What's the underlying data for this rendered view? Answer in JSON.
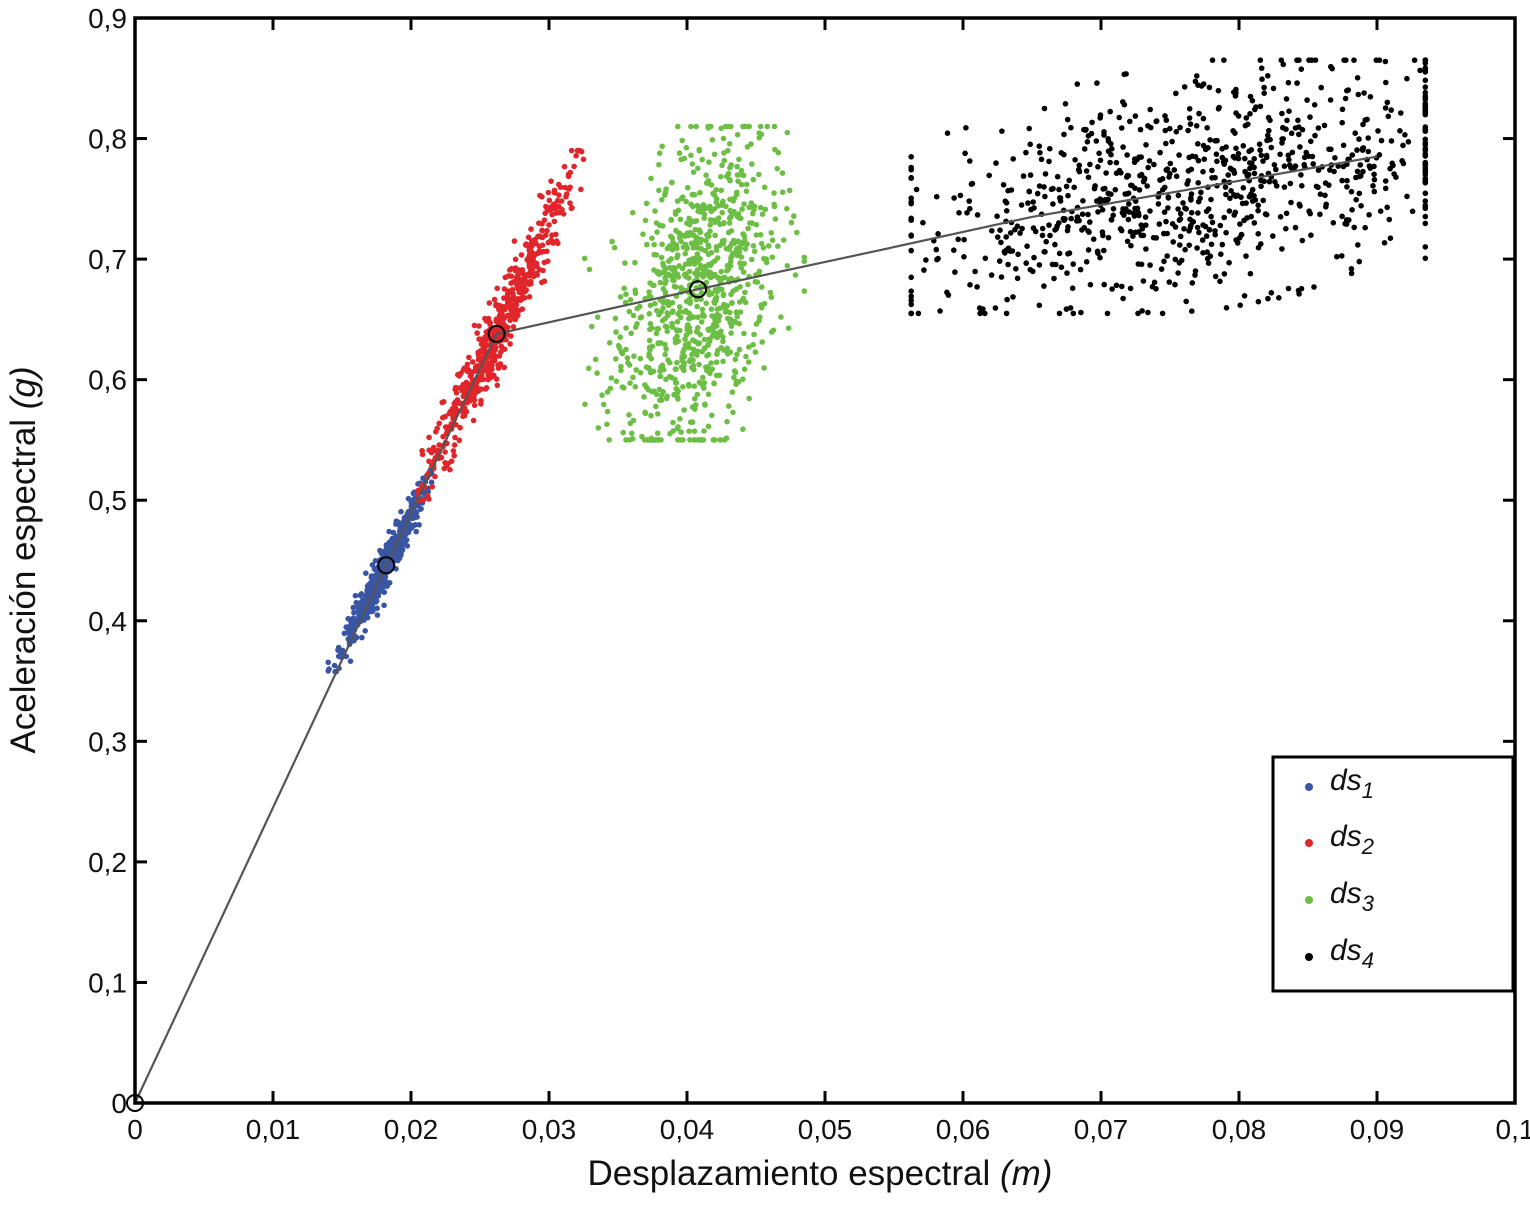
{
  "chart_data": {
    "type": "scatter",
    "title": "",
    "xlabel": "Desplazamiento espectral",
    "xlabel_unit": "(m)",
    "ylabel": "Aceleración espectral",
    "ylabel_unit": "(g)",
    "xlim": [
      0,
      0.1
    ],
    "ylim": [
      0,
      0.9
    ],
    "x_ticks": [
      0,
      0.01,
      0.02,
      0.03,
      0.04,
      0.05,
      0.06,
      0.07,
      0.08,
      0.09,
      0.1
    ],
    "x_tick_labels": [
      "0",
      "0,01",
      "0,02",
      "0,03",
      "0,04",
      "0,05",
      "0,06",
      "0,07",
      "0,08",
      "0,09",
      "0,1"
    ],
    "y_ticks": [
      0,
      0.1,
      0.2,
      0.3,
      0.4,
      0.5,
      0.6,
      0.7,
      0.8,
      0.9
    ],
    "y_tick_labels": [
      "0",
      "0,1",
      "0,2",
      "0,3",
      "0,4",
      "0,5",
      "0,6",
      "0,7",
      "0,8",
      "0,9"
    ],
    "grid": false,
    "legend_position": "bottom-right",
    "colors": {
      "ds1": "#3a55a4",
      "ds2": "#e0262b",
      "ds3": "#6dbe45",
      "ds4": "#000000",
      "capacity_curve": "#555555"
    },
    "capacity_curve": {
      "x": [
        0,
        0.0182,
        0.0262,
        0.0408,
        0.053,
        0.065,
        0.08,
        0.09
      ],
      "y": [
        0,
        0.446,
        0.638,
        0.675,
        0.705,
        0.735,
        0.765,
        0.785
      ]
    },
    "threshold_points": {
      "x": [
        0,
        0.0182,
        0.0262,
        0.0408
      ],
      "y": [
        0,
        0.446,
        0.638,
        0.675
      ]
    },
    "series": [
      {
        "name": "ds",
        "subscript": "1",
        "color": "#3a55a4",
        "n_points": 500,
        "x_range": [
          0.014,
          0.0215
        ],
        "y_range": [
          0.35,
          0.525
        ],
        "center": [
          0.0182,
          0.446
        ]
      },
      {
        "name": "ds",
        "subscript": "2",
        "color": "#e0262b",
        "n_points": 600,
        "x_range": [
          0.0205,
          0.0325
        ],
        "y_range": [
          0.5,
          0.79
        ],
        "center": [
          0.0262,
          0.638
        ]
      },
      {
        "name": "ds",
        "subscript": "3",
        "color": "#6dbe45",
        "n_points": 900,
        "x_range": [
          0.032,
          0.0485
        ],
        "y_range": [
          0.55,
          0.81
        ],
        "center": [
          0.0408,
          0.675
        ]
      },
      {
        "name": "ds",
        "subscript": "4",
        "color": "#000000",
        "n_points": 900,
        "x_range": [
          0.052,
          0.0935
        ],
        "y_range": [
          0.655,
          0.865
        ],
        "center": [
          0.077,
          0.76
        ]
      }
    ]
  }
}
